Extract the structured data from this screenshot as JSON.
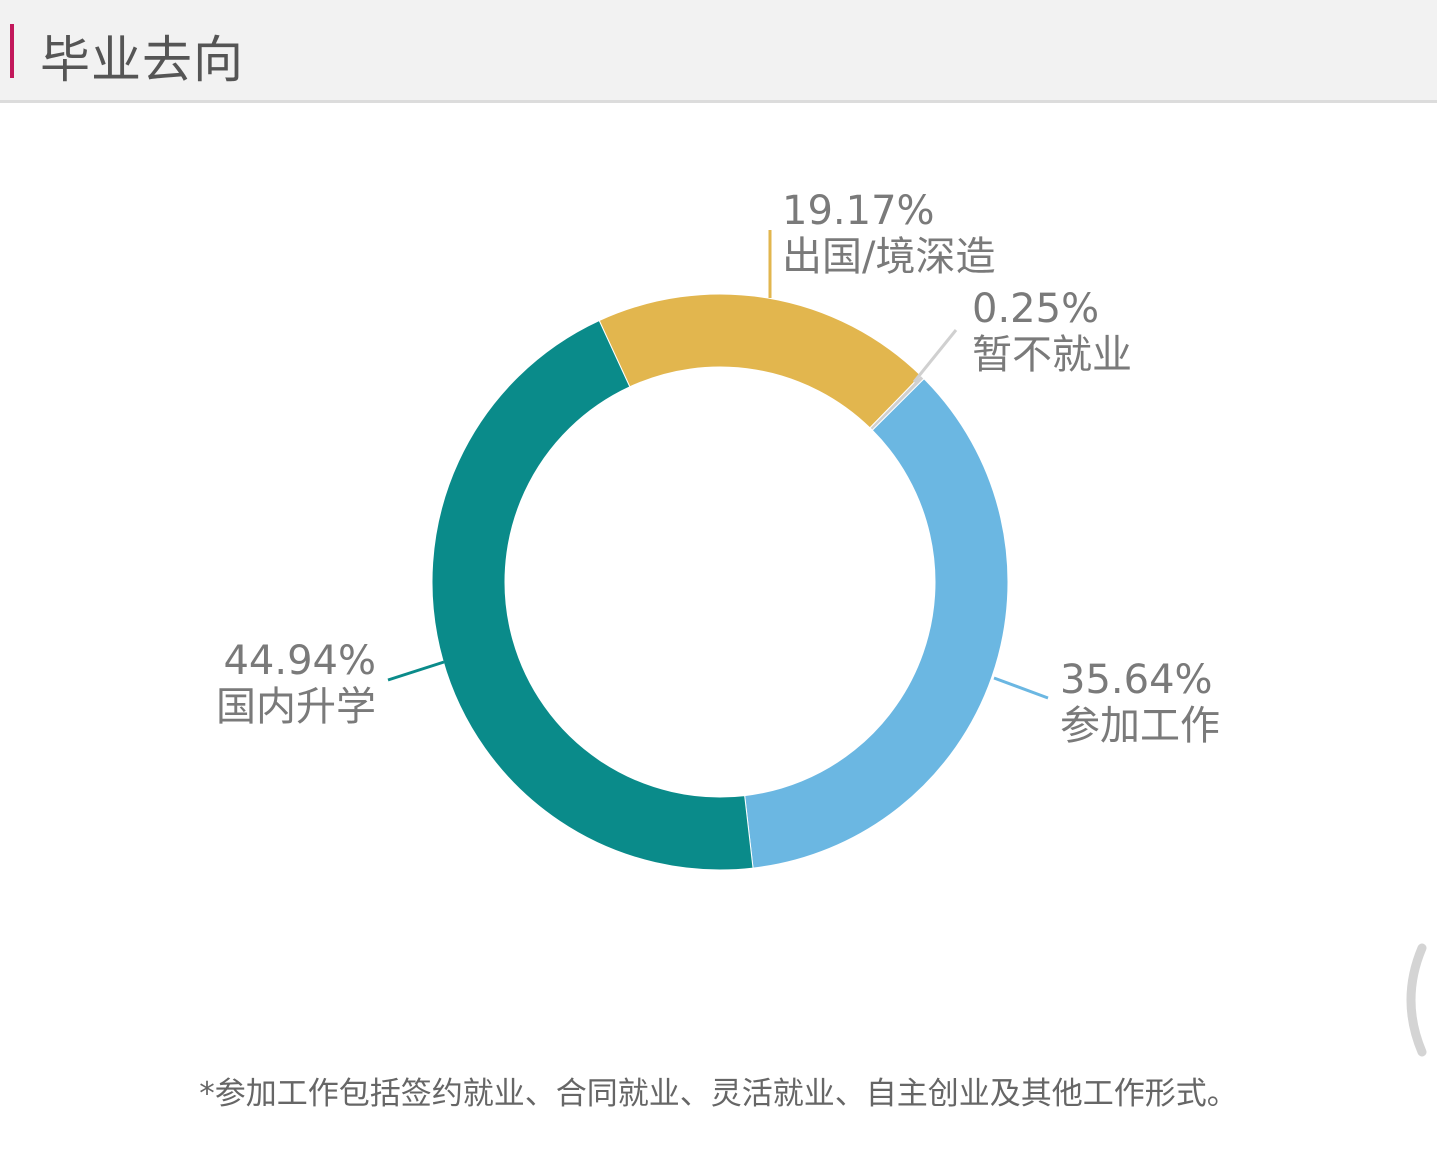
{
  "header": {
    "title": "毕业去向",
    "accent_color": "#c2185b"
  },
  "chart_data": {
    "type": "pie",
    "donut": true,
    "categories": [
      "出国/境深造",
      "暂不就业",
      "参加工作",
      "国内升学"
    ],
    "values": [
      19.17,
      0.25,
      35.64,
      44.94
    ],
    "labels": [
      "19.17%",
      "0.25%",
      "35.64%",
      "44.94%"
    ],
    "colors": [
      "#e2b64e",
      "#d0d0d0",
      "#6bb7e2",
      "#0a8b8a"
    ],
    "legend": "none"
  },
  "footnote": "*参加工作包括签约就业、合同就业、灵活就业、自主创业及其他工作形式。"
}
